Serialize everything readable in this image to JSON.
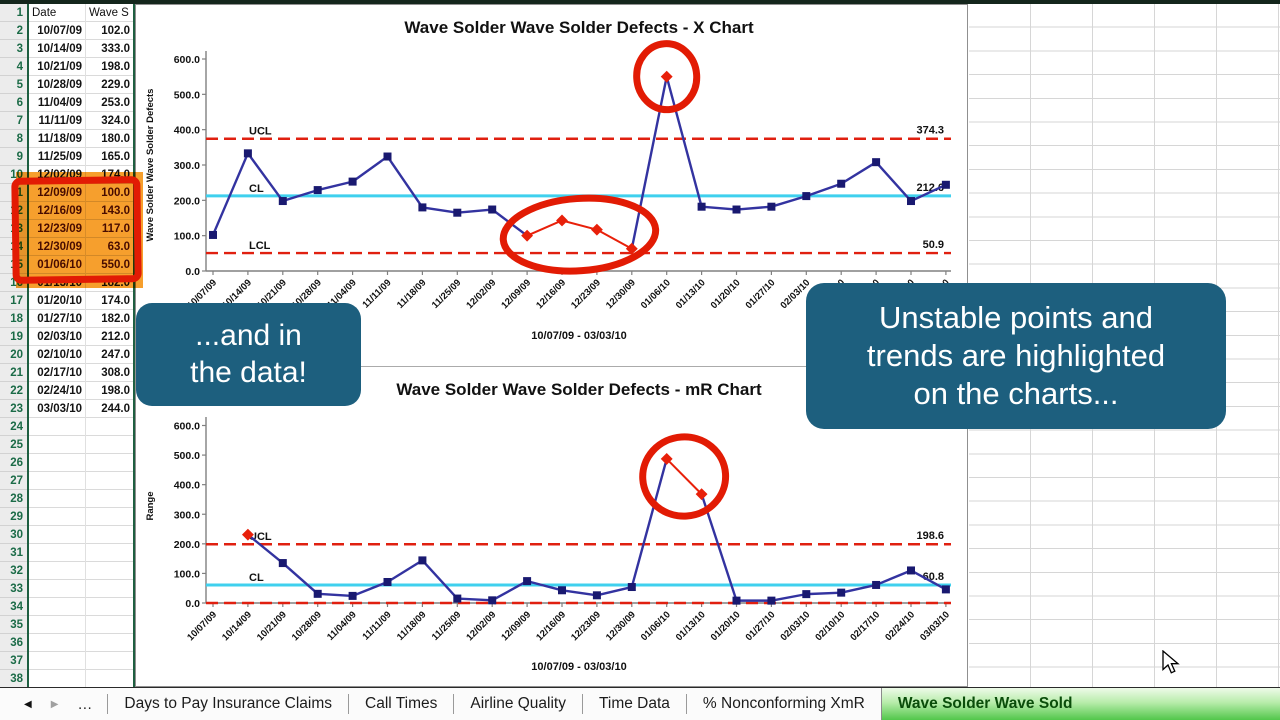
{
  "spreadsheet": {
    "row_count": 38,
    "columns": [
      "Date",
      "Wave S"
    ],
    "rows": [
      [
        "10/07/09",
        "102.0"
      ],
      [
        "10/14/09",
        "333.0"
      ],
      [
        "10/21/09",
        "198.0"
      ],
      [
        "10/28/09",
        "229.0"
      ],
      [
        "11/04/09",
        "253.0"
      ],
      [
        "11/11/09",
        "324.0"
      ],
      [
        "11/18/09",
        "180.0"
      ],
      [
        "11/25/09",
        "165.0"
      ],
      [
        "12/02/09",
        "174.0"
      ],
      [
        "12/09/09",
        "100.0"
      ],
      [
        "12/16/09",
        "143.0"
      ],
      [
        "12/23/09",
        "117.0"
      ],
      [
        "12/30/09",
        "63.0"
      ],
      [
        "01/06/10",
        "550.0"
      ],
      [
        "01/13/10",
        "182.0"
      ],
      [
        "01/20/10",
        "174.0"
      ],
      [
        "01/27/10",
        "182.0"
      ],
      [
        "02/03/10",
        "212.0"
      ],
      [
        "02/10/10",
        "247.0"
      ],
      [
        "02/17/10",
        "308.0"
      ],
      [
        "02/24/10",
        "198.0"
      ],
      [
        "03/03/10",
        "244.0"
      ]
    ],
    "highlight": {
      "start_row": 11,
      "end_row": 15,
      "fill": "#f69f2d",
      "border": "#e21b04"
    }
  },
  "callouts": {
    "left": {
      "lines": [
        "...and in",
        "the data!"
      ]
    },
    "right": {
      "lines": [
        "Unstable points and",
        "trends are highlighted",
        "on the charts..."
      ]
    }
  },
  "tabs": {
    "items": [
      "Days to Pay Insurance Claims",
      "Call Times",
      "Airline Quality",
      "Time Data",
      "% Nonconforming XmR",
      "Wave Solder Wave Sold"
    ],
    "active": "Wave Solder Wave Sold"
  },
  "chart_data": [
    {
      "type": "line",
      "title": "Wave Solder Wave Solder Defects - X Chart",
      "ylabel": "Wave Solder Wave Solder Defects",
      "xlabel": "10/07/09 - 03/03/10",
      "ylim": [
        0,
        600
      ],
      "yticks": [
        "0.0",
        "100.0",
        "200.0",
        "300.0",
        "400.0",
        "500.0",
        "600.0"
      ],
      "categories": [
        "10/07/09",
        "10/14/09",
        "10/21/09",
        "10/28/09",
        "11/04/09",
        "11/11/09",
        "11/18/09",
        "11/25/09",
        "12/02/09",
        "12/09/09",
        "12/16/09",
        "12/23/09",
        "12/30/09",
        "01/06/10",
        "01/13/10",
        "01/20/10",
        "01/27/10",
        "02/03/10",
        "02/10/10",
        "02/17/10",
        "02/24/10",
        "03/03/10"
      ],
      "values": [
        102,
        333,
        198,
        229,
        253,
        324,
        180,
        165,
        174,
        100,
        143,
        117,
        63,
        550,
        182,
        174,
        182,
        212,
        247,
        308,
        198,
        244
      ],
      "limits": [
        {
          "name": "UCL",
          "value": 374.3,
          "value_label": "374.3",
          "style": "dashed-red"
        },
        {
          "name": "CL",
          "value": 212.6,
          "value_label": "212.6",
          "style": "solid-cyan"
        },
        {
          "name": "LCL",
          "value": 50.9,
          "value_label": "50.9",
          "style": "dashed-red"
        }
      ],
      "unstable_points": [
        9,
        10,
        11,
        12,
        13
      ],
      "unstable_segments": [
        [
          9,
          10
        ],
        [
          10,
          11
        ],
        [
          11,
          12
        ]
      ],
      "highlight_circles": [
        [
          13
        ],
        [
          9,
          10,
          11,
          12
        ]
      ]
    },
    {
      "type": "line",
      "title": "Wave Solder Wave Solder Defects - mR Chart",
      "ylabel": "Range",
      "xlabel": "10/07/09 - 03/03/10",
      "ylim": [
        0,
        600
      ],
      "yticks": [
        "0.0",
        "100.0",
        "200.0",
        "300.0",
        "400.0",
        "500.0",
        "600.0"
      ],
      "categories": [
        "10/07/09",
        "10/14/09",
        "10/21/09",
        "10/28/09",
        "11/04/09",
        "11/11/09",
        "11/18/09",
        "11/25/09",
        "12/02/09",
        "12/09/09",
        "12/16/09",
        "12/23/09",
        "12/30/09",
        "01/06/10",
        "01/13/10",
        "01/20/10",
        "01/27/10",
        "02/03/10",
        "02/10/10",
        "02/17/10",
        "02/24/10",
        "03/03/10"
      ],
      "values": [
        null,
        231,
        135,
        31,
        24,
        71,
        144,
        15,
        9,
        74,
        43,
        26,
        54,
        487,
        368,
        8,
        8,
        30,
        35,
        61,
        110,
        46
      ],
      "limits": [
        {
          "name": "UCL",
          "value": 198.6,
          "value_label": "198.6",
          "style": "dashed-red"
        },
        {
          "name": "CL",
          "value": 60.8,
          "value_label": "60.8",
          "style": "solid-cyan"
        },
        {
          "name": "",
          "value": 0,
          "value_label": "",
          "style": "dashed-red"
        }
      ],
      "unstable_points": [
        1,
        13,
        14
      ],
      "unstable_segments": [
        [
          13,
          14
        ]
      ],
      "highlight_circles": [
        [
          13,
          14
        ]
      ]
    }
  ],
  "colors": {
    "series_line": "#3333a0",
    "series_marker": "#191970",
    "unstable_red": "#e8200a",
    "limit_red": "#e02010",
    "cl_cyan": "#3fd0ee",
    "callout_teal": "#1d5f7e",
    "highlight_orange": "#f69f2d",
    "marker_red": "#e21b04",
    "active_tab_green": "#52c74b",
    "row_number_green": "#1b6b47"
  }
}
